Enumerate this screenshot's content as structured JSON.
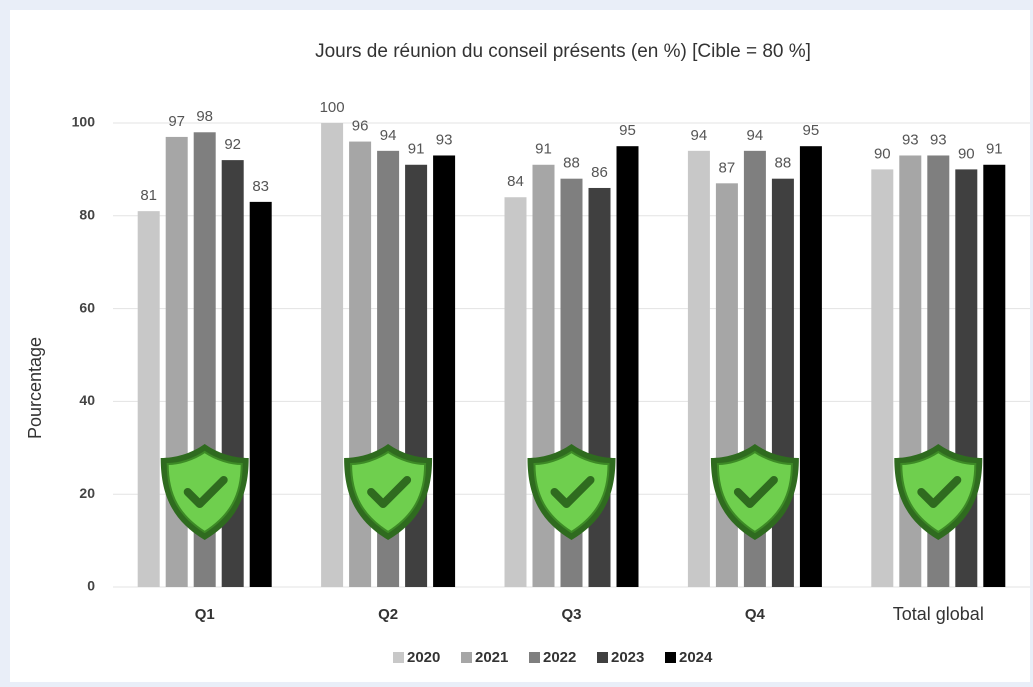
{
  "chart_data": {
    "type": "bar",
    "title": "Jours de réunion du conseil présents (en %) [Cible = 80 %]",
    "y_label": "Pourcentage",
    "categories": [
      "Q1",
      "Q2",
      "Q3",
      "Q4",
      "Total global"
    ],
    "series": [
      {
        "name": "2020",
        "color": "#c8c8c8",
        "values": [
          81,
          100,
          84,
          94,
          90
        ]
      },
      {
        "name": "2021",
        "color": "#a6a6a6",
        "values": [
          97,
          96,
          91,
          87,
          93
        ]
      },
      {
        "name": "2022",
        "color": "#7f7f7f",
        "values": [
          98,
          94,
          88,
          94,
          93
        ]
      },
      {
        "name": "2023",
        "color": "#404040",
        "values": [
          92,
          91,
          86,
          88,
          90
        ]
      },
      {
        "name": "2024",
        "color": "#000000",
        "values": [
          83,
          93,
          95,
          95,
          91
        ]
      }
    ],
    "ylim": [
      0,
      100
    ],
    "yticks": [
      0,
      20,
      40,
      60,
      80,
      100
    ],
    "grid": true,
    "legend": "bottom"
  }
}
